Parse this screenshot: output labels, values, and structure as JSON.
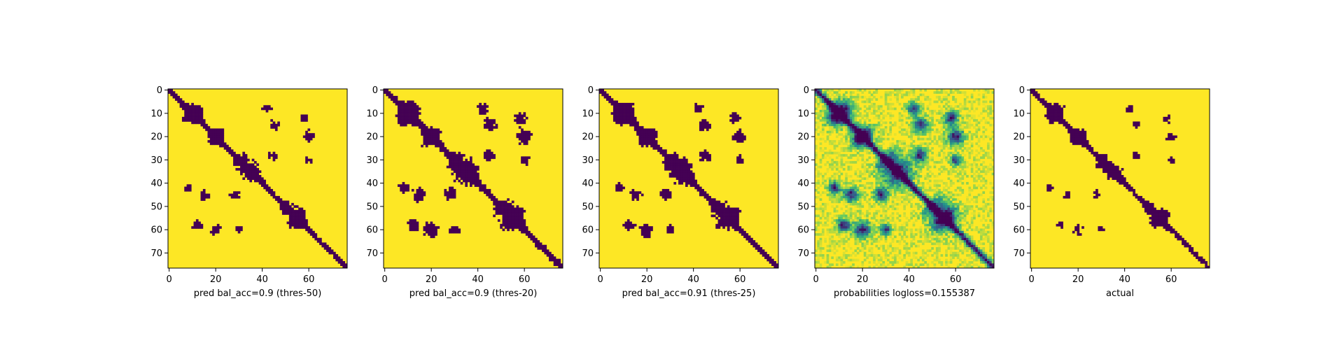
{
  "chart_data": [
    {
      "type": "heatmap",
      "title": "",
      "xlabel": "pred bal_acc=0.9 (thres-50)",
      "ylabel": "",
      "grid_size": 77,
      "xlim": [
        0,
        76
      ],
      "ylim": [
        76,
        0
      ],
      "xticks": [
        0,
        20,
        40,
        60
      ],
      "yticks": [
        0,
        10,
        20,
        30,
        40,
        50,
        60,
        70
      ],
      "colormap": "binary",
      "colors": {
        "low": "#440154",
        "high": "#fde725"
      }
    },
    {
      "type": "heatmap",
      "title": "",
      "xlabel": "pred bal_acc=0.9 (thres-20)",
      "ylabel": "",
      "grid_size": 77,
      "xlim": [
        0,
        76
      ],
      "ylim": [
        76,
        0
      ],
      "xticks": [
        0,
        20,
        40,
        60
      ],
      "yticks": [
        0,
        10,
        20,
        30,
        40,
        50,
        60,
        70
      ],
      "colormap": "binary",
      "colors": {
        "low": "#440154",
        "high": "#fde725"
      }
    },
    {
      "type": "heatmap",
      "title": "",
      "xlabel": "pred bal_acc=0.91 (thres-25)",
      "ylabel": "",
      "grid_size": 77,
      "xlim": [
        0,
        76
      ],
      "ylim": [
        76,
        0
      ],
      "xticks": [
        0,
        20,
        40,
        60
      ],
      "yticks": [
        0,
        10,
        20,
        30,
        40,
        50,
        60,
        70
      ],
      "colormap": "binary",
      "colors": {
        "low": "#440154",
        "high": "#fde725"
      }
    },
    {
      "type": "heatmap",
      "title": "",
      "xlabel": "probabilities logloss=0.155387",
      "ylabel": "",
      "grid_size": 77,
      "xlim": [
        0,
        76
      ],
      "ylim": [
        76,
        0
      ],
      "xticks": [
        0,
        20,
        40,
        60
      ],
      "yticks": [
        0,
        10,
        20,
        30,
        40,
        50,
        60,
        70
      ],
      "colormap": "viridis",
      "colors": {
        "low": "#440154",
        "mid": "#21918c",
        "high": "#fde725"
      }
    },
    {
      "type": "heatmap",
      "title": "",
      "xlabel": "actual",
      "ylabel": "",
      "grid_size": 77,
      "xlim": [
        0,
        76
      ],
      "ylim": [
        76,
        0
      ],
      "xticks": [
        0,
        20,
        40,
        60
      ],
      "yticks": [
        0,
        10,
        20,
        30,
        40,
        50,
        60,
        70
      ],
      "colormap": "binary",
      "colors": {
        "low": "#440154",
        "high": "#fde725"
      }
    }
  ]
}
